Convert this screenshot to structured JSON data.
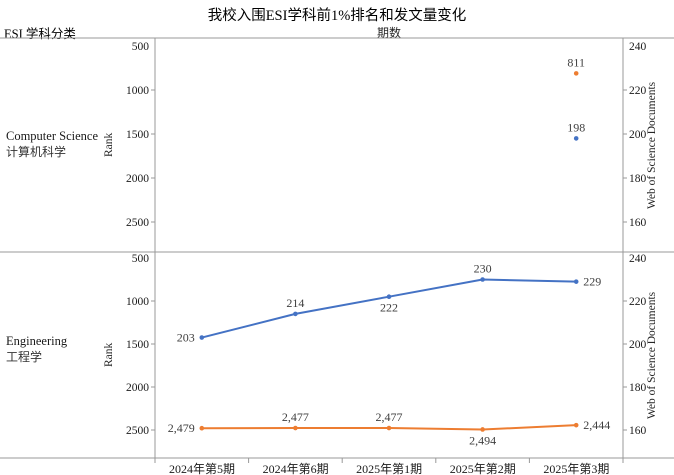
{
  "title": "我校入围ESI学科前1%排名和发文量变化",
  "corner_label": "ESI 学科分类",
  "x_axis_title": "期数",
  "colors": {
    "rank_series": "#ED7D31",
    "docs_series": "#4472C4",
    "axis_line": "#999999",
    "tick_text": "#1a1a1a",
    "data_label_text": "#404040"
  },
  "chart_data": [
    {
      "type": "line",
      "subject_en": "Computer Science",
      "subject_zh": "计算机科学",
      "x": [
        "2024年第5期",
        "2024年第6期",
        "2025年第1期",
        "2025年第2期",
        "2025年第3期"
      ],
      "left_axis": {
        "label": "Rank",
        "ticks": [
          500,
          1000,
          1500,
          2000,
          2500
        ],
        "inverted": true
      },
      "right_axis": {
        "label": "Web of Science Documents",
        "ticks": [
          240,
          220,
          200,
          180,
          160
        ]
      },
      "grid": false,
      "legend": "none",
      "series": [
        {
          "name": "Rank",
          "axis": "left",
          "color": "#ED7D31",
          "values": [
            null,
            null,
            null,
            null,
            811
          ],
          "labels": [
            null,
            null,
            null,
            null,
            "811"
          ],
          "label_pos": [
            null,
            null,
            null,
            null,
            "above"
          ]
        },
        {
          "name": "Web of Science Documents",
          "axis": "right",
          "color": "#4472C4",
          "values": [
            null,
            null,
            null,
            null,
            198
          ],
          "labels": [
            null,
            null,
            null,
            null,
            "198"
          ],
          "label_pos": [
            null,
            null,
            null,
            null,
            "above"
          ]
        }
      ]
    },
    {
      "type": "line",
      "subject_en": "Engineering",
      "subject_zh": "工程学",
      "x": [
        "2024年第5期",
        "2024年第6期",
        "2025年第1期",
        "2025年第2期",
        "2025年第3期"
      ],
      "left_axis": {
        "label": "Rank",
        "ticks": [
          500,
          1000,
          1500,
          2000,
          2500
        ],
        "inverted": true
      },
      "right_axis": {
        "label": "Web of Science Documents",
        "ticks": [
          240,
          220,
          200,
          180,
          160
        ]
      },
      "grid": false,
      "legend": "none",
      "series": [
        {
          "name": "Rank",
          "axis": "left",
          "color": "#ED7D31",
          "values": [
            2479,
            2477,
            2477,
            2494,
            2444
          ],
          "labels": [
            "2,479",
            "2,477",
            "2,477",
            "2,494",
            "2,444"
          ],
          "label_pos": [
            "left",
            "above",
            "above",
            "below",
            "right"
          ]
        },
        {
          "name": "Web of Science Documents",
          "axis": "right",
          "color": "#4472C4",
          "values": [
            203,
            214,
            222,
            230,
            229
          ],
          "labels": [
            "203",
            "214",
            "222",
            "230",
            "229"
          ],
          "label_pos": [
            "left",
            "above",
            "below",
            "above",
            "right"
          ]
        }
      ]
    }
  ]
}
